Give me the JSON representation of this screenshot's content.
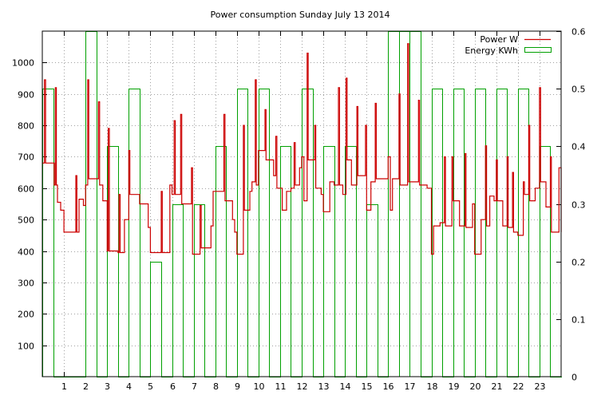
{
  "chart_data": {
    "type": "line",
    "title": "Power consumption Sunday July 13 2014",
    "xlabel": "",
    "ylabel": "",
    "xlim": [
      0,
      24
    ],
    "ylim": [
      0,
      1100
    ],
    "y2lim": [
      0,
      0.6
    ],
    "x_ticks": [
      1,
      2,
      3,
      4,
      5,
      6,
      7,
      8,
      9,
      10,
      11,
      12,
      13,
      14,
      15,
      16,
      17,
      18,
      19,
      20,
      21,
      22,
      23
    ],
    "y_ticks": [
      100,
      200,
      300,
      400,
      500,
      600,
      700,
      800,
      900,
      1000
    ],
    "y2_ticks": [
      "0",
      "0.1",
      "0.2",
      "0.3",
      "0.4",
      "0.5",
      "0.6"
    ],
    "grid": true,
    "legend": "top-right",
    "series": [
      {
        "name": "Power W",
        "axis": "left",
        "style": "steps",
        "color": "#cc0000",
        "points": [
          [
            0.0,
            680
          ],
          [
            0.1,
            945
          ],
          [
            0.15,
            680
          ],
          [
            0.5,
            680
          ],
          [
            0.55,
            610
          ],
          [
            0.6,
            920
          ],
          [
            0.65,
            610
          ],
          [
            0.7,
            555
          ],
          [
            0.85,
            530
          ],
          [
            1.0,
            460
          ],
          [
            1.3,
            460
          ],
          [
            1.55,
            640
          ],
          [
            1.6,
            460
          ],
          [
            1.7,
            565
          ],
          [
            1.9,
            545
          ],
          [
            2.0,
            610
          ],
          [
            2.1,
            945
          ],
          [
            2.15,
            630
          ],
          [
            2.5,
            630
          ],
          [
            2.6,
            875
          ],
          [
            2.65,
            610
          ],
          [
            2.8,
            560
          ],
          [
            3.0,
            400
          ],
          [
            3.05,
            790
          ],
          [
            3.1,
            400
          ],
          [
            3.5,
            395
          ],
          [
            3.55,
            580
          ],
          [
            3.6,
            395
          ],
          [
            3.8,
            500
          ],
          [
            4.0,
            720
          ],
          [
            4.05,
            580
          ],
          [
            4.5,
            550
          ],
          [
            4.9,
            475
          ],
          [
            5.0,
            395
          ],
          [
            5.5,
            590
          ],
          [
            5.55,
            395
          ],
          [
            5.9,
            610
          ],
          [
            6.0,
            580
          ],
          [
            6.1,
            815
          ],
          [
            6.15,
            580
          ],
          [
            6.4,
            835
          ],
          [
            6.45,
            550
          ],
          [
            6.9,
            665
          ],
          [
            6.95,
            390
          ],
          [
            7.3,
            545
          ],
          [
            7.35,
            410
          ],
          [
            7.8,
            480
          ],
          [
            7.9,
            590
          ],
          [
            8.3,
            590
          ],
          [
            8.4,
            835
          ],
          [
            8.45,
            560
          ],
          [
            8.8,
            500
          ],
          [
            8.9,
            460
          ],
          [
            9.0,
            390
          ],
          [
            9.3,
            800
          ],
          [
            9.35,
            530
          ],
          [
            9.6,
            590
          ],
          [
            9.7,
            620
          ],
          [
            9.85,
            945
          ],
          [
            9.9,
            610
          ],
          [
            10.0,
            720
          ],
          [
            10.3,
            850
          ],
          [
            10.35,
            690
          ],
          [
            10.7,
            640
          ],
          [
            10.8,
            765
          ],
          [
            10.85,
            600
          ],
          [
            11.1,
            530
          ],
          [
            11.3,
            590
          ],
          [
            11.5,
            600
          ],
          [
            11.65,
            745
          ],
          [
            11.7,
            610
          ],
          [
            11.9,
            665
          ],
          [
            12.0,
            700
          ],
          [
            12.1,
            560
          ],
          [
            12.25,
            1030
          ],
          [
            12.3,
            690
          ],
          [
            12.6,
            800
          ],
          [
            12.65,
            600
          ],
          [
            12.9,
            580
          ],
          [
            13.0,
            525
          ],
          [
            13.3,
            620
          ],
          [
            13.5,
            610
          ],
          [
            13.7,
            920
          ],
          [
            13.75,
            610
          ],
          [
            13.9,
            580
          ],
          [
            14.05,
            950
          ],
          [
            14.1,
            690
          ],
          [
            14.3,
            610
          ],
          [
            14.55,
            860
          ],
          [
            14.6,
            640
          ],
          [
            14.95,
            800
          ],
          [
            15.0,
            530
          ],
          [
            15.2,
            620
          ],
          [
            15.4,
            870
          ],
          [
            15.45,
            630
          ],
          [
            15.7,
            630
          ],
          [
            15.9,
            630
          ],
          [
            16.0,
            700
          ],
          [
            16.1,
            530
          ],
          [
            16.2,
            630
          ],
          [
            16.5,
            900
          ],
          [
            16.55,
            610
          ],
          [
            16.9,
            1060
          ],
          [
            16.95,
            620
          ],
          [
            17.4,
            880
          ],
          [
            17.45,
            610
          ],
          [
            17.8,
            600
          ],
          [
            18.0,
            390
          ],
          [
            18.1,
            480
          ],
          [
            18.4,
            490
          ],
          [
            18.6,
            700
          ],
          [
            18.65,
            480
          ],
          [
            18.95,
            700
          ],
          [
            19.0,
            560
          ],
          [
            19.3,
            480
          ],
          [
            19.55,
            710
          ],
          [
            19.6,
            475
          ],
          [
            19.9,
            550
          ],
          [
            20.0,
            390
          ],
          [
            20.3,
            500
          ],
          [
            20.5,
            735
          ],
          [
            20.55,
            480
          ],
          [
            20.7,
            575
          ],
          [
            20.9,
            560
          ],
          [
            21.0,
            690
          ],
          [
            21.05,
            560
          ],
          [
            21.3,
            480
          ],
          [
            21.5,
            700
          ],
          [
            21.55,
            475
          ],
          [
            21.75,
            650
          ],
          [
            21.8,
            460
          ],
          [
            22.0,
            450
          ],
          [
            22.25,
            620
          ],
          [
            22.3,
            580
          ],
          [
            22.5,
            800
          ],
          [
            22.55,
            560
          ],
          [
            22.8,
            600
          ],
          [
            23.0,
            920
          ],
          [
            23.05,
            620
          ],
          [
            23.3,
            540
          ],
          [
            23.5,
            700
          ],
          [
            23.55,
            460
          ],
          [
            23.9,
            665
          ],
          [
            24.0,
            460
          ]
        ]
      },
      {
        "name": "Energy KWh",
        "axis": "right",
        "style": "boxes",
        "color": "#00a000",
        "box_half_width": 0.25,
        "points": [
          [
            0.0,
            0.5
          ],
          [
            0.5,
            0.0
          ],
          [
            1.0,
            0.0
          ],
          [
            1.5,
            0.0
          ],
          [
            2.0,
            0.6
          ],
          [
            2.5,
            0.0
          ],
          [
            3.0,
            0.4
          ],
          [
            3.5,
            0.0
          ],
          [
            4.0,
            0.5
          ],
          [
            4.5,
            0.0
          ],
          [
            5.0,
            0.2
          ],
          [
            5.5,
            0.0
          ],
          [
            6.0,
            0.3
          ],
          [
            6.5,
            0.0
          ],
          [
            7.0,
            0.3
          ],
          [
            7.5,
            0.0
          ],
          [
            8.0,
            0.4
          ],
          [
            8.5,
            0.0
          ],
          [
            9.0,
            0.5
          ],
          [
            9.5,
            0.0
          ],
          [
            10.0,
            0.5
          ],
          [
            10.5,
            0.0
          ],
          [
            11.0,
            0.4
          ],
          [
            11.5,
            0.0
          ],
          [
            12.0,
            0.5
          ],
          [
            12.5,
            0.0
          ],
          [
            13.0,
            0.4
          ],
          [
            13.5,
            0.0
          ],
          [
            14.0,
            0.4
          ],
          [
            14.5,
            0.0
          ],
          [
            15.0,
            0.3
          ],
          [
            15.5,
            0.0
          ],
          [
            16.0,
            0.6
          ],
          [
            16.5,
            0.6
          ],
          [
            17.0,
            0.6
          ],
          [
            17.5,
            0.0
          ],
          [
            18.0,
            0.5
          ],
          [
            18.5,
            0.0
          ],
          [
            19.0,
            0.5
          ],
          [
            19.5,
            0.0
          ],
          [
            20.0,
            0.5
          ],
          [
            20.5,
            0.0
          ],
          [
            21.0,
            0.5
          ],
          [
            21.5,
            0.0
          ],
          [
            22.0,
            0.5
          ],
          [
            22.5,
            0.0
          ],
          [
            23.0,
            0.4
          ],
          [
            23.5,
            0.0
          ]
        ]
      }
    ]
  }
}
